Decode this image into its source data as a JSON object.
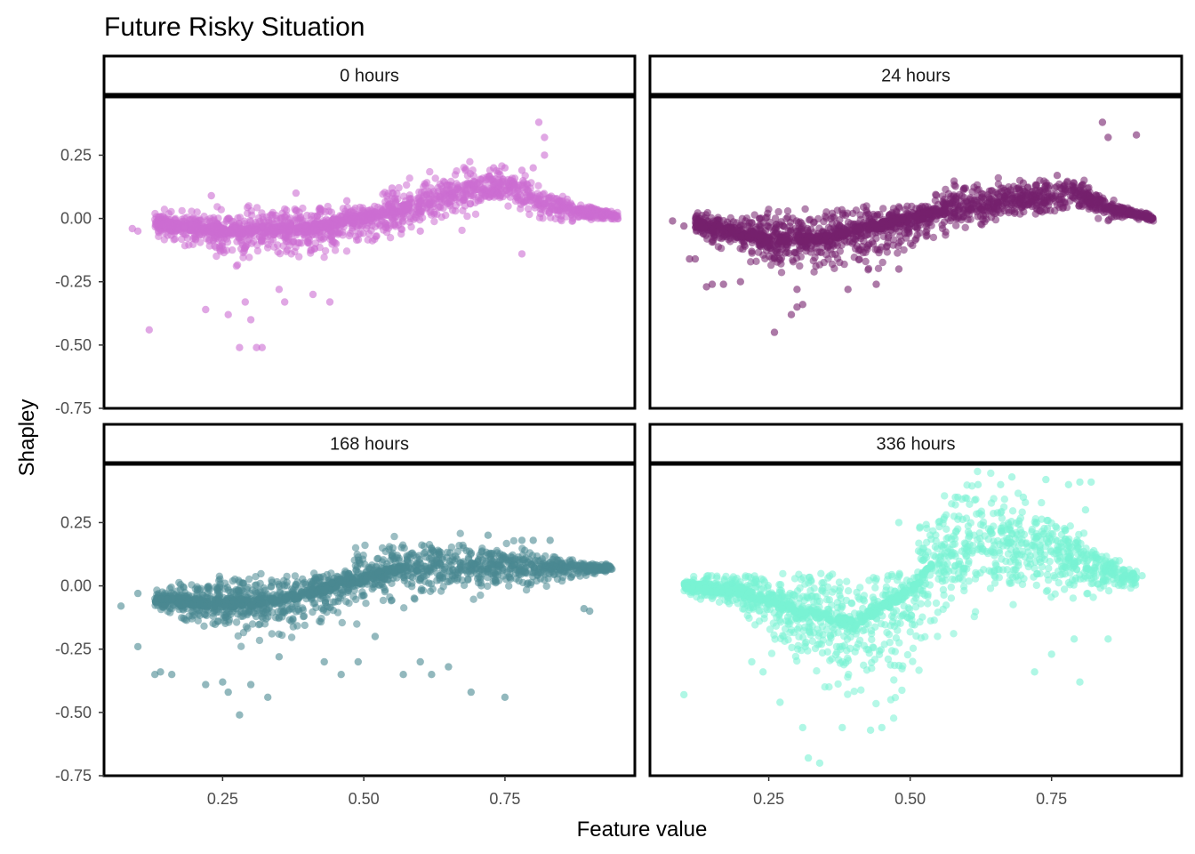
{
  "chart_data": {
    "type": "scatter",
    "title": "Future Risky Situation",
    "xlabel": "Feature value",
    "ylabel": "Shapley",
    "xlim": [
      0.04,
      0.98
    ],
    "ylim": [
      -0.75,
      0.48
    ],
    "x_ticks": [
      0.25,
      0.5,
      0.75
    ],
    "x_tick_labels": [
      "0.25",
      "0.50",
      "0.75"
    ],
    "y_ticks": [
      0.25,
      0.0,
      -0.25,
      -0.5,
      -0.75
    ],
    "y_tick_labels": [
      "0.25",
      "0.00",
      "-0.25",
      "-0.50",
      "-0.75"
    ],
    "grid": false,
    "legend": "none",
    "panels": [
      {
        "name": "0 hours",
        "color": "#CC6DD2",
        "trend": [
          [
            0.13,
            -0.02
          ],
          [
            0.25,
            -0.05
          ],
          [
            0.4,
            -0.04
          ],
          [
            0.5,
            0.0
          ],
          [
            0.6,
            0.06
          ],
          [
            0.7,
            0.12
          ],
          [
            0.76,
            0.13
          ],
          [
            0.82,
            0.05
          ],
          [
            0.95,
            0.01
          ]
        ],
        "spread": [
          [
            0.13,
            0.03
          ],
          [
            0.3,
            0.09
          ],
          [
            0.45,
            0.09
          ],
          [
            0.6,
            0.06
          ],
          [
            0.75,
            0.06
          ],
          [
            0.95,
            0.01
          ]
        ],
        "outliers": [
          [
            0.09,
            -0.04
          ],
          [
            0.1,
            -0.05
          ],
          [
            0.12,
            -0.44
          ],
          [
            0.23,
            0.09
          ],
          [
            0.22,
            -0.36
          ],
          [
            0.26,
            -0.38
          ],
          [
            0.28,
            -0.51
          ],
          [
            0.31,
            -0.51
          ],
          [
            0.32,
            -0.51
          ],
          [
            0.3,
            -0.4
          ],
          [
            0.35,
            -0.28
          ],
          [
            0.36,
            -0.33
          ],
          [
            0.38,
            0.1
          ],
          [
            0.29,
            -0.33
          ],
          [
            0.41,
            -0.3
          ],
          [
            0.44,
            -0.33
          ],
          [
            0.47,
            0.07
          ],
          [
            0.55,
            0.12
          ],
          [
            0.6,
            -0.05
          ],
          [
            0.68,
            0.19
          ],
          [
            0.73,
            0.2
          ],
          [
            0.75,
            0.2
          ],
          [
            0.78,
            0.19
          ],
          [
            0.8,
            0.2
          ],
          [
            0.81,
            0.38
          ],
          [
            0.82,
            0.32
          ],
          [
            0.82,
            0.25
          ],
          [
            0.78,
            -0.14
          ],
          [
            0.85,
            0.01
          ],
          [
            0.9,
            0.01
          ],
          [
            0.94,
            0.01
          ]
        ]
      },
      {
        "name": "24 hours",
        "color": "#75206D",
        "trend": [
          [
            0.12,
            -0.02
          ],
          [
            0.25,
            -0.08
          ],
          [
            0.35,
            -0.08
          ],
          [
            0.5,
            0.0
          ],
          [
            0.6,
            0.05
          ],
          [
            0.72,
            0.08
          ],
          [
            0.8,
            0.1
          ],
          [
            0.85,
            0.04
          ],
          [
            0.93,
            0.0
          ]
        ],
        "spread": [
          [
            0.12,
            0.03
          ],
          [
            0.3,
            0.1
          ],
          [
            0.45,
            0.1
          ],
          [
            0.6,
            0.06
          ],
          [
            0.75,
            0.05
          ],
          [
            0.93,
            0.01
          ]
        ],
        "outliers": [
          [
            0.08,
            -0.01
          ],
          [
            0.1,
            -0.03
          ],
          [
            0.11,
            -0.16
          ],
          [
            0.12,
            -0.16
          ],
          [
            0.14,
            -0.27
          ],
          [
            0.15,
            -0.26
          ],
          [
            0.17,
            -0.26
          ],
          [
            0.2,
            -0.25
          ],
          [
            0.22,
            -0.13
          ],
          [
            0.26,
            -0.45
          ],
          [
            0.3,
            -0.35
          ],
          [
            0.31,
            -0.34
          ],
          [
            0.29,
            -0.38
          ],
          [
            0.3,
            -0.28
          ],
          [
            0.39,
            -0.28
          ],
          [
            0.44,
            -0.26
          ],
          [
            0.48,
            -0.2
          ],
          [
            0.84,
            0.38
          ],
          [
            0.85,
            0.32
          ],
          [
            0.9,
            0.33
          ],
          [
            0.88,
            0.01
          ],
          [
            0.91,
            0.01
          ],
          [
            0.92,
            0.0
          ],
          [
            0.76,
            0.17
          ],
          [
            0.7,
            0.14
          ]
        ]
      },
      {
        "name": "168 hours",
        "color": "#4A8891",
        "trend": [
          [
            0.13,
            -0.06
          ],
          [
            0.25,
            -0.07
          ],
          [
            0.35,
            -0.06
          ],
          [
            0.45,
            0.0
          ],
          [
            0.55,
            0.06
          ],
          [
            0.65,
            0.08
          ],
          [
            0.75,
            0.08
          ],
          [
            0.85,
            0.07
          ],
          [
            0.94,
            0.07
          ]
        ],
        "spread": [
          [
            0.13,
            0.03
          ],
          [
            0.3,
            0.09
          ],
          [
            0.45,
            0.1
          ],
          [
            0.6,
            0.08
          ],
          [
            0.75,
            0.06
          ],
          [
            0.94,
            0.01
          ]
        ],
        "outliers": [
          [
            0.07,
            -0.08
          ],
          [
            0.1,
            -0.03
          ],
          [
            0.1,
            -0.24
          ],
          [
            0.13,
            -0.35
          ],
          [
            0.14,
            -0.34
          ],
          [
            0.16,
            -0.35
          ],
          [
            0.22,
            -0.39
          ],
          [
            0.25,
            -0.38
          ],
          [
            0.26,
            -0.42
          ],
          [
            0.28,
            -0.51
          ],
          [
            0.3,
            -0.39
          ],
          [
            0.33,
            -0.44
          ],
          [
            0.35,
            -0.28
          ],
          [
            0.43,
            -0.3
          ],
          [
            0.46,
            -0.35
          ],
          [
            0.49,
            -0.3
          ],
          [
            0.52,
            -0.2
          ],
          [
            0.55,
            0.12
          ],
          [
            0.57,
            -0.35
          ],
          [
            0.6,
            -0.3
          ],
          [
            0.62,
            -0.35
          ],
          [
            0.65,
            -0.32
          ],
          [
            0.69,
            -0.42
          ],
          [
            0.72,
            0.2
          ],
          [
            0.75,
            -0.44
          ],
          [
            0.78,
            0.18
          ],
          [
            0.8,
            0.18
          ],
          [
            0.83,
            0.18
          ],
          [
            0.89,
            -0.09
          ],
          [
            0.9,
            -0.1
          ],
          [
            0.92,
            0.07
          ]
        ]
      },
      {
        "name": "336 hours",
        "color": "#79F2D3",
        "trend": [
          [
            0.1,
            0.0
          ],
          [
            0.2,
            -0.02
          ],
          [
            0.3,
            -0.1
          ],
          [
            0.4,
            -0.15
          ],
          [
            0.5,
            -0.02
          ],
          [
            0.55,
            0.12
          ],
          [
            0.65,
            0.18
          ],
          [
            0.75,
            0.12
          ],
          [
            0.82,
            0.08
          ],
          [
            0.9,
            0.03
          ]
        ],
        "spread": [
          [
            0.1,
            0.02
          ],
          [
            0.2,
            0.06
          ],
          [
            0.3,
            0.16
          ],
          [
            0.4,
            0.22
          ],
          [
            0.5,
            0.25
          ],
          [
            0.55,
            0.18
          ],
          [
            0.65,
            0.16
          ],
          [
            0.75,
            0.12
          ],
          [
            0.82,
            0.08
          ],
          [
            0.9,
            0.02
          ]
        ],
        "outliers": [
          [
            0.1,
            -0.43
          ],
          [
            0.15,
            -0.05
          ],
          [
            0.18,
            -0.07
          ],
          [
            0.22,
            -0.3
          ],
          [
            0.24,
            -0.34
          ],
          [
            0.27,
            -0.46
          ],
          [
            0.31,
            -0.56
          ],
          [
            0.32,
            -0.68
          ],
          [
            0.34,
            -0.7
          ],
          [
            0.38,
            -0.56
          ],
          [
            0.43,
            -0.57
          ],
          [
            0.45,
            -0.56
          ],
          [
            0.48,
            0.25
          ],
          [
            0.58,
            0.35
          ],
          [
            0.62,
            0.4
          ],
          [
            0.66,
            0.4
          ],
          [
            0.68,
            0.43
          ],
          [
            0.7,
            0.35
          ],
          [
            0.74,
            0.42
          ],
          [
            0.78,
            0.4
          ],
          [
            0.8,
            0.41
          ],
          [
            0.82,
            0.41
          ],
          [
            0.81,
            0.3
          ],
          [
            0.72,
            -0.34
          ],
          [
            0.75,
            -0.27
          ],
          [
            0.79,
            -0.21
          ],
          [
            0.8,
            -0.38
          ],
          [
            0.85,
            -0.21
          ],
          [
            0.88,
            0.04
          ],
          [
            0.91,
            0.04
          ]
        ]
      }
    ]
  }
}
